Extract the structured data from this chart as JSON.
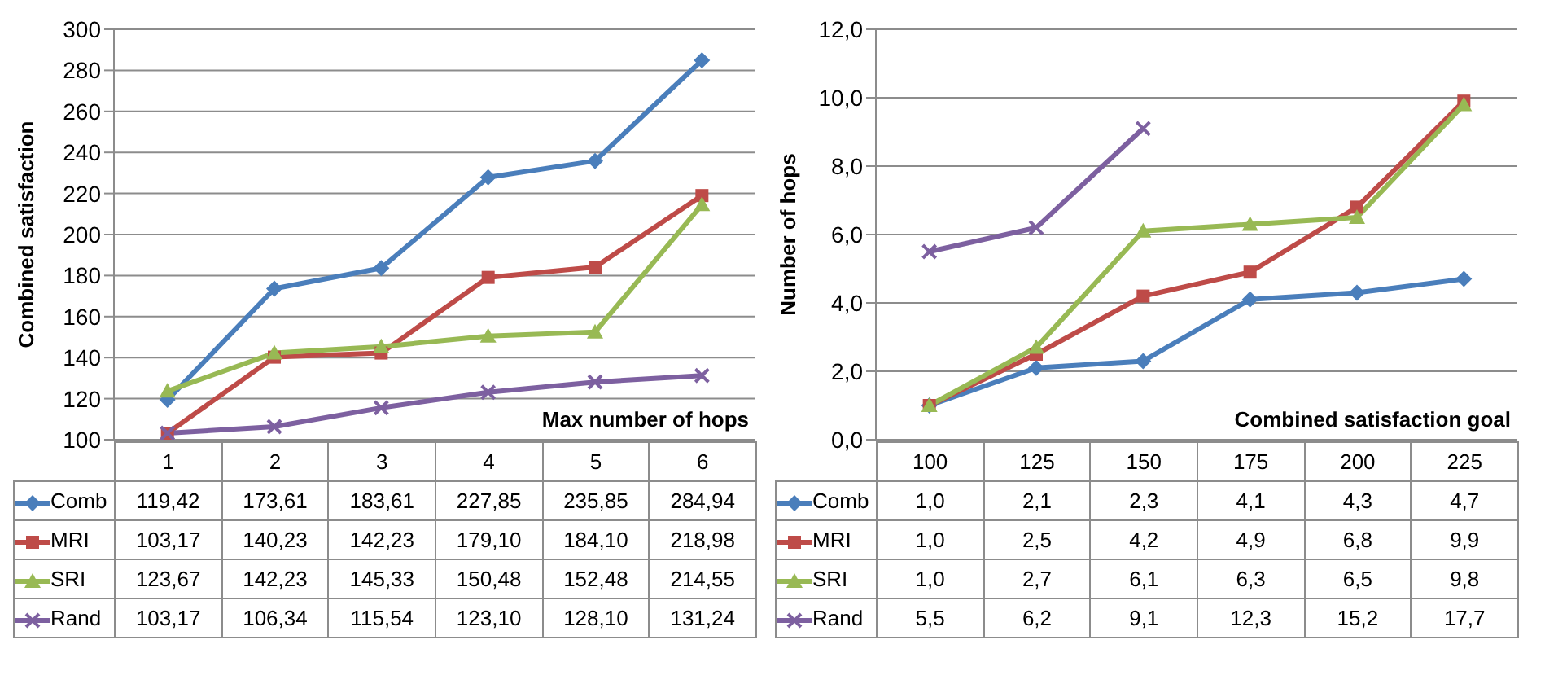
{
  "chart_data": [
    {
      "type": "line",
      "categories": [
        "1",
        "2",
        "3",
        "4",
        "5",
        "6"
      ],
      "xlabel": "Max number of hops",
      "ylabel": "Combined satisfaction",
      "ylim": [
        100,
        300
      ],
      "yticks": [
        100,
        120,
        140,
        160,
        180,
        200,
        220,
        240,
        260,
        280,
        300
      ],
      "grid": "y",
      "legend": "bottom",
      "series": [
        {
          "name": "Comb",
          "color": "#4a7ebb",
          "marker": "diamond",
          "values": [
            119.42,
            173.61,
            183.61,
            227.85,
            235.85,
            284.94
          ],
          "value_labels": [
            "119,42",
            "173,61",
            "183,61",
            "227,85",
            "235,85",
            "284,94"
          ]
        },
        {
          "name": "MRI",
          "color": "#be4b48",
          "marker": "square",
          "values": [
            103.17,
            140.23,
            142.23,
            179.1,
            184.1,
            218.98
          ],
          "value_labels": [
            "103,17",
            "140,23",
            "142,23",
            "179,10",
            "184,10",
            "218,98"
          ]
        },
        {
          "name": "SRI",
          "color": "#98b954",
          "marker": "triangle",
          "values": [
            123.67,
            142.23,
            145.33,
            150.48,
            152.48,
            214.55
          ],
          "value_labels": [
            "123,67",
            "142,23",
            "145,33",
            "150,48",
            "152,48",
            "214,55"
          ]
        },
        {
          "name": "Rand",
          "color": "#7d60a0",
          "marker": "cross",
          "values": [
            103.17,
            106.34,
            115.54,
            123.1,
            128.1,
            131.24
          ],
          "value_labels": [
            "103,17",
            "106,34",
            "115,54",
            "123,10",
            "128,10",
            "131,24"
          ]
        }
      ]
    },
    {
      "type": "line",
      "categories": [
        "100",
        "125",
        "150",
        "175",
        "200",
        "225"
      ],
      "xlabel": "Combined satisfaction goal",
      "ylabel": "Number of hops",
      "ylim": [
        0,
        12
      ],
      "yticks": [
        {
          "value": 0,
          "label": "0,0"
        },
        {
          "value": 2,
          "label": "2,0"
        },
        {
          "value": 4,
          "label": "4,0"
        },
        {
          "value": 6,
          "label": "6,0"
        },
        {
          "value": 8,
          "label": "8,0"
        },
        {
          "value": 10,
          "label": "10,0"
        },
        {
          "value": 12,
          "label": "12,0"
        }
      ],
      "grid": "y",
      "legend": "bottom",
      "series": [
        {
          "name": "Comb",
          "color": "#4a7ebb",
          "marker": "diamond",
          "values": [
            1.0,
            2.1,
            2.3,
            4.1,
            4.3,
            4.7
          ],
          "value_labels": [
            "1,0",
            "2,1",
            "2,3",
            "4,1",
            "4,3",
            "4,7"
          ]
        },
        {
          "name": "MRI",
          "color": "#be4b48",
          "marker": "square",
          "values": [
            1.0,
            2.5,
            4.2,
            4.9,
            6.8,
            9.9
          ],
          "value_labels": [
            "1,0",
            "2,5",
            "4,2",
            "4,9",
            "6,8",
            "9,9"
          ]
        },
        {
          "name": "SRI",
          "color": "#98b954",
          "marker": "triangle",
          "values": [
            1.0,
            2.7,
            6.1,
            6.3,
            6.5,
            9.8
          ],
          "value_labels": [
            "1,0",
            "2,7",
            "6,1",
            "6,3",
            "6,5",
            "9,8"
          ]
        },
        {
          "name": "Rand",
          "color": "#7d60a0",
          "marker": "cross",
          "values": [
            5.5,
            6.2,
            9.1,
            null,
            null,
            null
          ],
          "value_labels": [
            "5,5",
            "6,2",
            "9,1",
            "12,3",
            "15,2",
            "17,7"
          ]
        }
      ]
    }
  ]
}
